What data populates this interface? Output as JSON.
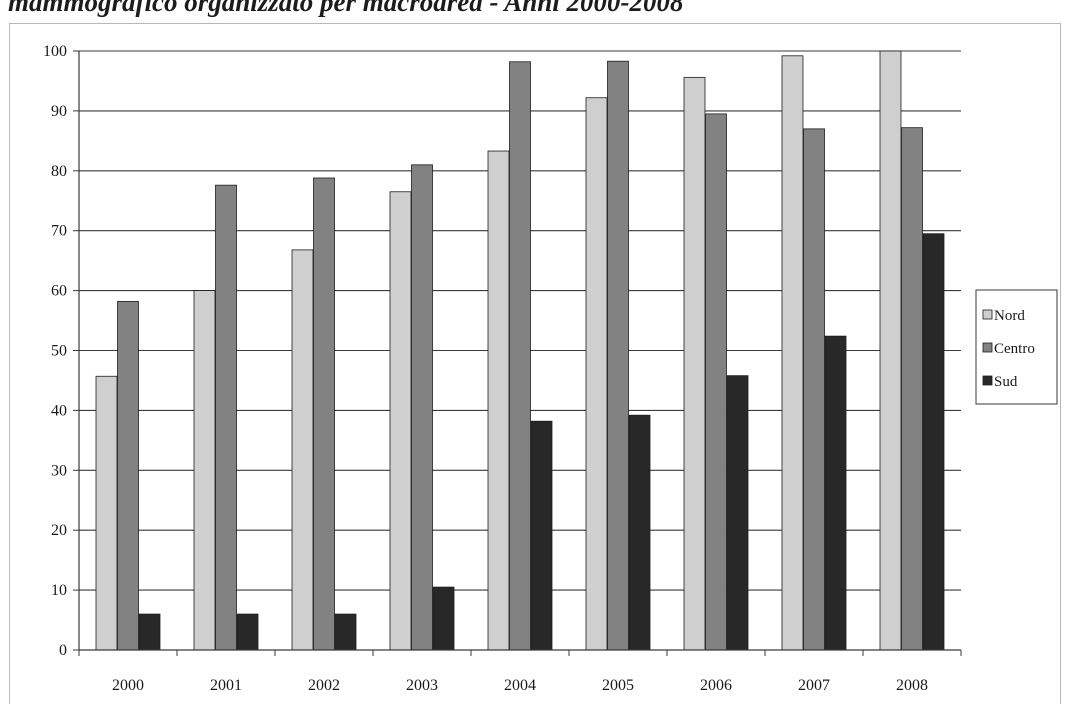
{
  "title": "mammografico organizzato per macroarea - Anni 2000-2008",
  "chart_data": {
    "type": "bar",
    "categories": [
      "2000",
      "2001",
      "2002",
      "2003",
      "2004",
      "2005",
      "2006",
      "2007",
      "2008"
    ],
    "series": [
      {
        "name": "Nord",
        "color": "#cfcfcf",
        "values": [
          45.7,
          60.0,
          66.8,
          76.5,
          83.3,
          92.2,
          95.6,
          99.2,
          100.0
        ]
      },
      {
        "name": "Centro",
        "color": "#828282",
        "values": [
          58.2,
          77.6,
          78.8,
          81.0,
          98.2,
          98.3,
          89.5,
          87.0,
          87.2
        ]
      },
      {
        "name": "Sud",
        "color": "#282828",
        "values": [
          6.0,
          6.0,
          6.0,
          10.5,
          38.2,
          39.2,
          45.8,
          52.4,
          69.5
        ]
      }
    ],
    "y_ticks": [
      "0",
      "10",
      "20",
      "30",
      "40",
      "50",
      "60",
      "70",
      "80",
      "90",
      "100"
    ],
    "ylim": [
      0,
      100
    ],
    "grid": true,
    "legend_position": "right",
    "xlabel": "",
    "ylabel": ""
  }
}
